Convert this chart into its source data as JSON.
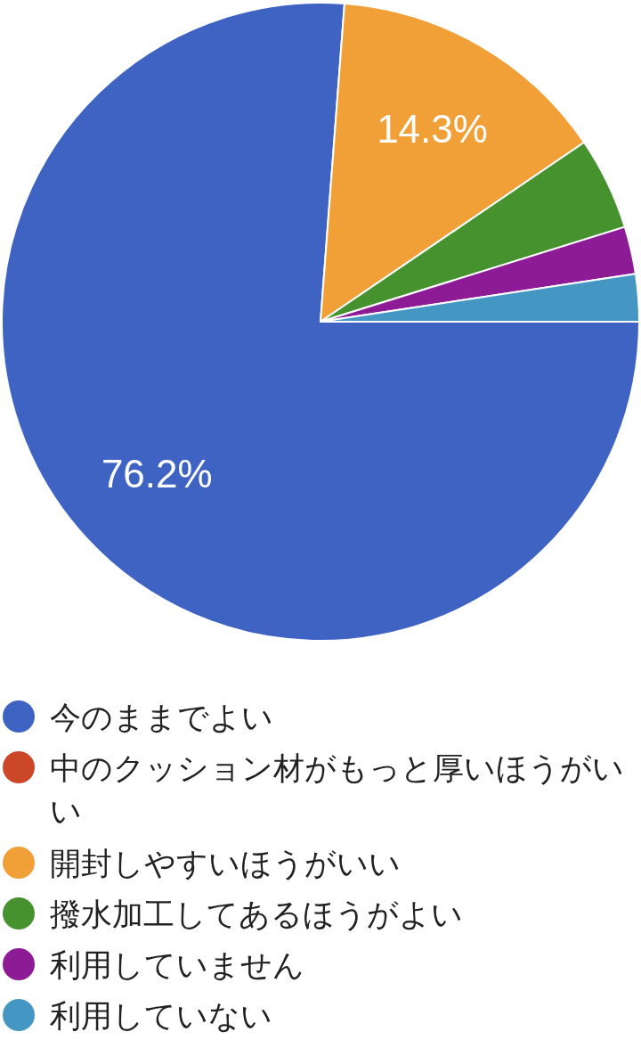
{
  "chart_data": {
    "type": "pie",
    "categories": [
      "今のままでよい",
      "中のクッション材がもっと厚いほうがいい",
      "開封しやすいほうがいい",
      "撥水加工してあるほうがよい",
      "利用していません",
      "利用していない"
    ],
    "values": [
      76.2,
      0,
      14.3,
      4.7,
      2.4,
      2.4
    ],
    "colors": [
      "#3e63c3",
      "#cc4628",
      "#f1a038",
      "#46922f",
      "#8d1b95",
      "#4597c3"
    ],
    "value_labels": [
      "76.2%",
      null,
      "14.3%",
      null,
      null,
      null
    ],
    "legend": "bottom"
  }
}
